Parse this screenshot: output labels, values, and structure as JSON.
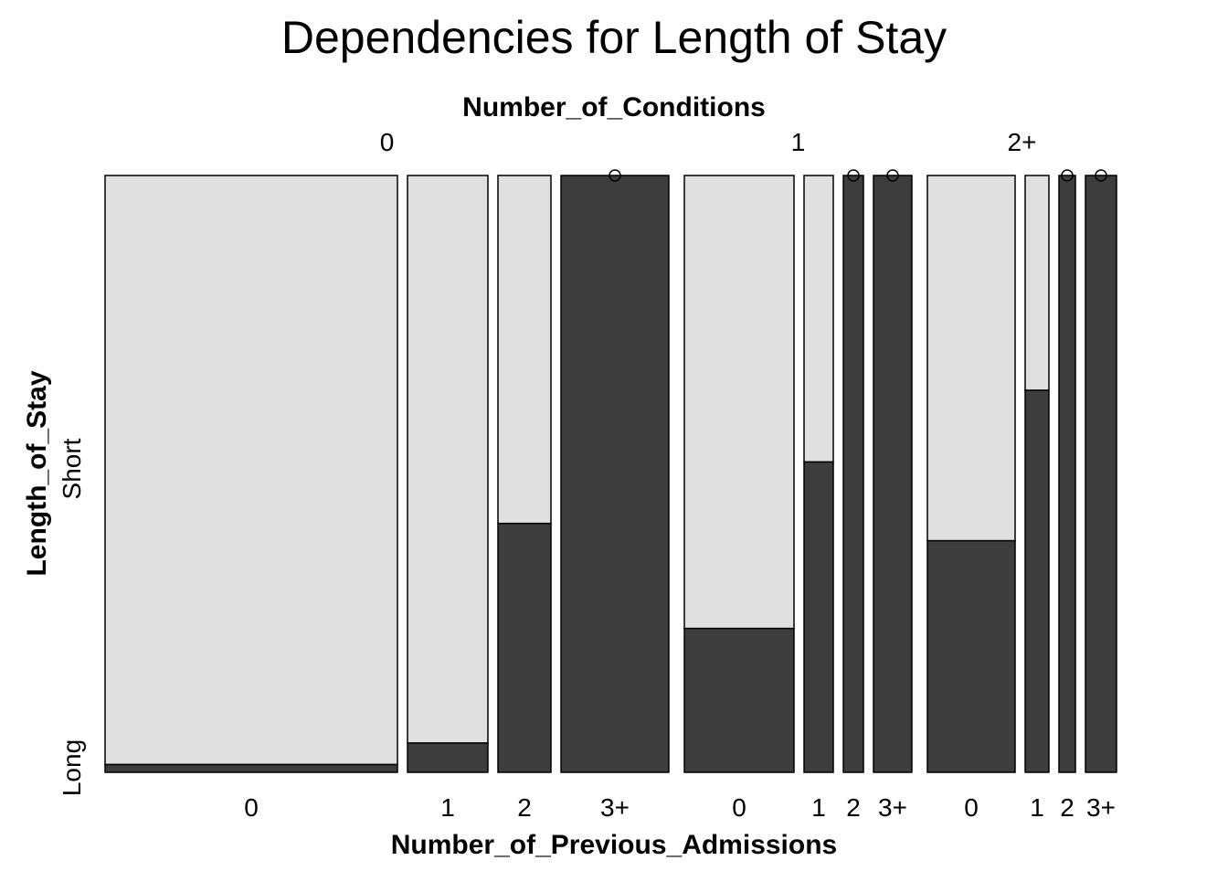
{
  "chart_data": {
    "type": "mosaic",
    "title": "Dependencies for Length of Stay",
    "top_axis_label": "Number_of_Conditions",
    "bottom_axis_label": "Number_of_Previous_Admissions",
    "left_axis_label": "Length_of_Stay",
    "y_categories": [
      "Long",
      "Short"
    ],
    "colors": {
      "Long": "#3d3d3d",
      "Short": "#e0e0e0"
    },
    "groups": [
      {
        "label": "0",
        "cells": [
          {
            "label": "0",
            "width": 320,
            "long_fraction": 0.013
          },
          {
            "label": "1",
            "width": 88,
            "long_fraction": 0.049
          },
          {
            "label": "2",
            "width": 58,
            "long_fraction": 0.417
          },
          {
            "label": "3+",
            "width": 118,
            "long_fraction": 1.0,
            "short_zero": true
          }
        ]
      },
      {
        "label": "1",
        "cells": [
          {
            "label": "0",
            "width": 120,
            "long_fraction": 0.241
          },
          {
            "label": "1",
            "width": 32,
            "long_fraction": 0.52
          },
          {
            "label": "2",
            "width": 22,
            "long_fraction": 1.0,
            "short_zero": true
          },
          {
            "label": "3+",
            "width": 42,
            "long_fraction": 1.0,
            "short_zero": true
          }
        ]
      },
      {
        "label": "2+",
        "cells": [
          {
            "label": "0",
            "width": 96,
            "long_fraction": 0.388
          },
          {
            "label": "1",
            "width": 26,
            "long_fraction": 0.64
          },
          {
            "label": "2",
            "width": 18,
            "long_fraction": 1.0,
            "short_zero": true
          },
          {
            "label": "3+",
            "width": 34,
            "long_fraction": 1.0,
            "short_zero": true
          }
        ]
      }
    ]
  }
}
